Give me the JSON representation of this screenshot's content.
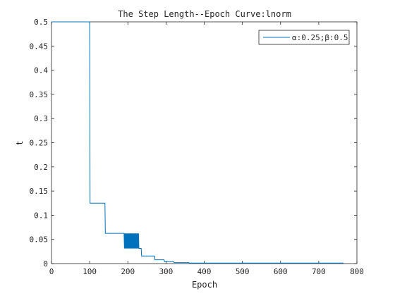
{
  "chart_data": {
    "type": "line",
    "title": "The Step Length--Epoch Curve:lnorm",
    "xlabel": "Epoch",
    "ylabel": "t",
    "xlim": [
      0,
      800
    ],
    "ylim": [
      0,
      0.5
    ],
    "xticks": [
      "0",
      "100",
      "200",
      "300",
      "400",
      "500",
      "600",
      "700",
      "800"
    ],
    "yticks": [
      "0",
      "0.05",
      "0.1",
      "0.15",
      "0.2",
      "0.25",
      "0.3",
      "0.35",
      "0.4",
      "0.45",
      "0.5"
    ],
    "grid": false,
    "legend_position": "top-right",
    "colors": {
      "series": "#0072bd",
      "axis": "#262626"
    },
    "series": [
      {
        "name": "α:0.25;β:0.5",
        "x": [
          0,
          100,
          101,
          140,
          141,
          190,
          191,
          192,
          193,
          194,
          195,
          196,
          197,
          198,
          199,
          200,
          201,
          202,
          203,
          204,
          205,
          206,
          207,
          208,
          209,
          210,
          211,
          212,
          213,
          214,
          215,
          216,
          217,
          218,
          219,
          220,
          221,
          222,
          223,
          224,
          225,
          226,
          227,
          228,
          229,
          230,
          235,
          236,
          270,
          271,
          295,
          296,
          320,
          321,
          360,
          361,
          765
        ],
        "y": [
          0.5,
          0.5,
          0.125,
          0.125,
          0.0625,
          0.0625,
          0.03125,
          0.0625,
          0.03125,
          0.0625,
          0.03125,
          0.0625,
          0.03125,
          0.0625,
          0.03125,
          0.0625,
          0.03125,
          0.0625,
          0.03125,
          0.0625,
          0.03125,
          0.0625,
          0.03125,
          0.0625,
          0.03125,
          0.0625,
          0.03125,
          0.0625,
          0.03125,
          0.0625,
          0.03125,
          0.0625,
          0.03125,
          0.0625,
          0.03125,
          0.0625,
          0.03125,
          0.0625,
          0.03125,
          0.0625,
          0.03125,
          0.0625,
          0.03125,
          0.0625,
          0.03125,
          0.03125,
          0.03125,
          0.015625,
          0.015625,
          0.0078,
          0.0078,
          0.0039,
          0.0039,
          0.002,
          0.002,
          0.001,
          0.001
        ]
      }
    ]
  }
}
